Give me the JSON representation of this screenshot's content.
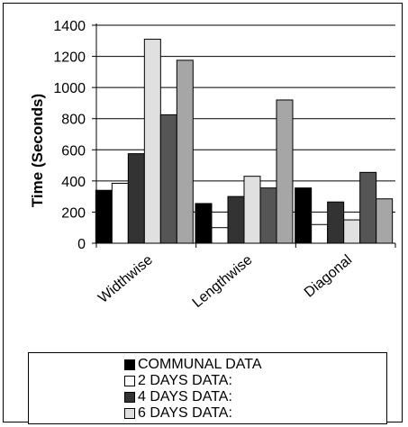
{
  "chart_data": {
    "type": "bar",
    "title": "",
    "xlabel": "",
    "ylabel": "Time (Seconds)",
    "ylim": [
      0,
      1400
    ],
    "yticks": [
      0,
      200,
      400,
      600,
      800,
      1000,
      1200,
      1400
    ],
    "grid": "horizontal",
    "legend_position": "bottom",
    "categories": [
      "Widthwise",
      "Lengthwise",
      "Diagonal"
    ],
    "series": [
      {
        "name": "COMMUNAL DATA",
        "color": "#000000",
        "values": [
          340,
          255,
          355
        ]
      },
      {
        "name": "2 DAYS DATA:",
        "color": "#ffffff",
        "values": [
          385,
          100,
          120
        ]
      },
      {
        "name": "4 DAYS DATA:",
        "color": "#333333",
        "values": [
          575,
          300,
          265
        ]
      },
      {
        "name": "6 DAYS DATA:",
        "color": "#e0e0e0",
        "values": [
          1310,
          430,
          150
        ]
      },
      {
        "name": "",
        "color": "#555555",
        "values": [
          825,
          355,
          455
        ]
      },
      {
        "name": "",
        "color": "#a6a6a6",
        "values": [
          1175,
          920,
          285
        ]
      }
    ]
  }
}
